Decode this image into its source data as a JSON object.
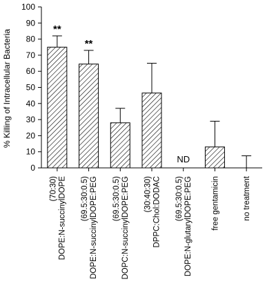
{
  "chart_data": {
    "type": "bar",
    "ylabel": "% Killing of Intracellular Bacteria",
    "ylim": [
      0,
      100
    ],
    "yticks": [
      0,
      10,
      20,
      30,
      40,
      50,
      60,
      70,
      80,
      90,
      100
    ],
    "categories": [
      [
        "DOPE:N-succinylDOPE",
        "(70:30)"
      ],
      [
        "DOPE:N-succinylDOPE:PEG",
        "(69.5:30:0.5)"
      ],
      [
        "DOPC:N-succinylDOPE:PEG",
        "(69.5:30:0.5)"
      ],
      [
        "DPPC:Chol:DODAC",
        "(30:40:30)"
      ],
      [
        "DOPE:N-glutarylDOPE:PEG",
        "(69.5:30:0.5)"
      ],
      [
        "free gentamicin"
      ],
      [
        "no treatment"
      ]
    ],
    "values": [
      75,
      64.5,
      28,
      46.5,
      null,
      13,
      0
    ],
    "errors": [
      7,
      8.5,
      9,
      18.5,
      null,
      16,
      7.5
    ],
    "annotations": [
      "**",
      "**",
      "",
      "",
      "ND",
      "",
      ""
    ],
    "colors": {
      "bar_fill": "#ffffff",
      "hatch": "#000000",
      "axis": "#000000"
    }
  }
}
